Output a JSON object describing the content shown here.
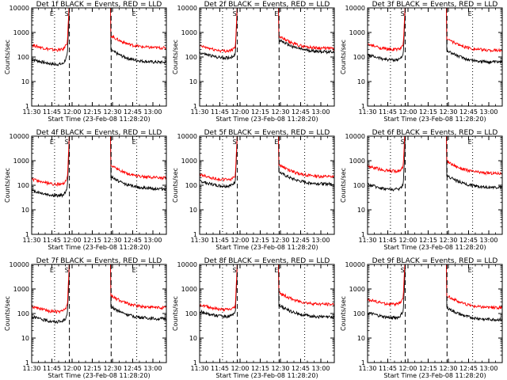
{
  "chart_data": {
    "type": "line",
    "y_scale": "log",
    "ylim": [
      1,
      10000
    ],
    "y_ticks": [
      "1",
      "10",
      "100",
      "1000",
      "10000"
    ],
    "x_ticks": [
      "11:30",
      "11:45",
      "12:00",
      "12:15",
      "12:30",
      "12:45",
      "13:00"
    ],
    "x_range_minutes_after_11_30": [
      0,
      100
    ],
    "xlabel": "Start Time (23-Feb-08 11:28:20)",
    "ylabel": "Counts/sec",
    "colors": {
      "events": "#000000",
      "lld": "#ff0000"
    },
    "markers": [
      {
        "label": "E",
        "time": "11:47",
        "style": "dotted"
      },
      {
        "label": "S",
        "time": "11:58",
        "style": "dashed"
      },
      {
        "label": "E",
        "time": "12:29",
        "style": "dashed"
      },
      {
        "label": "E",
        "time": "12:48",
        "style": "dotted"
      }
    ],
    "panels": [
      {
        "title": "Det 1f BLACK = Events, RED = LLD",
        "markers": [
          "E",
          "S",
          "",
          "E"
        ],
        "series": [
          {
            "name": "Events",
            "color": "#000000",
            "pre": 60,
            "post": 60,
            "peak_pre": 120
          },
          {
            "name": "LLD",
            "color": "#ff0000",
            "pre": 230,
            "post": 230,
            "peak_pre": 420
          }
        ]
      },
      {
        "title": "Det 2f BLACK = Events, RED = LLD",
        "markers": [
          "",
          "S",
          "E",
          ""
        ],
        "series": [
          {
            "name": "Events",
            "color": "#000000",
            "pre": 110,
            "post": 160,
            "peak_pre": 140
          },
          {
            "name": "LLD",
            "color": "#ff0000",
            "pre": 210,
            "post": 220,
            "peak_pre": 250
          }
        ]
      },
      {
        "title": "Det 3f BLACK = Events, RED = LLD",
        "markers": [
          "",
          "S",
          "",
          "E"
        ],
        "series": [
          {
            "name": "Events",
            "color": "#000000",
            "pre": 90,
            "post": 60,
            "peak_pre": 130
          },
          {
            "name": "LLD",
            "color": "#ff0000",
            "pre": 240,
            "post": 180,
            "peak_pre": 300
          }
        ]
      },
      {
        "title": "Det 4f BLACK = Events, RED = LLD",
        "markers": [
          "E",
          "S",
          "",
          "E"
        ],
        "series": [
          {
            "name": "Events",
            "color": "#000000",
            "pre": 45,
            "post": 70,
            "peak_pre": 80
          },
          {
            "name": "LLD",
            "color": "#ff0000",
            "pre": 130,
            "post": 200,
            "peak_pre": 200
          }
        ]
      },
      {
        "title": "Det 5f BLACK = Events, RED = LLD",
        "markers": [
          "",
          "S",
          "E",
          ""
        ],
        "series": [
          {
            "name": "Events",
            "color": "#000000",
            "pre": 110,
            "post": 110,
            "peak_pre": 150
          },
          {
            "name": "LLD",
            "color": "#ff0000",
            "pre": 200,
            "post": 220,
            "peak_pre": 250
          }
        ]
      },
      {
        "title": "Det 6f BLACK = Events, RED = LLD",
        "markers": [
          "",
          "S",
          "",
          "E"
        ],
        "series": [
          {
            "name": "Events",
            "color": "#000000",
            "pre": 80,
            "post": 80,
            "peak_pre": 110
          },
          {
            "name": "LLD",
            "color": "#ff0000",
            "pre": 450,
            "post": 300,
            "peak_pre": 600
          }
        ]
      },
      {
        "title": "Det 7f BLACK = Events, RED = LLD",
        "markers": [
          "E",
          "S",
          "",
          "E"
        ],
        "series": [
          {
            "name": "Events",
            "color": "#000000",
            "pre": 55,
            "post": 60,
            "peak_pre": 90
          },
          {
            "name": "LLD",
            "color": "#ff0000",
            "pre": 140,
            "post": 170,
            "peak_pre": 220
          }
        ]
      },
      {
        "title": "Det 8f BLACK = Events, RED = LLD",
        "markers": [
          "",
          "S",
          "E",
          ""
        ],
        "series": [
          {
            "name": "Events",
            "color": "#000000",
            "pre": 90,
            "post": 70,
            "peak_pre": 110
          },
          {
            "name": "LLD",
            "color": "#ff0000",
            "pre": 170,
            "post": 230,
            "peak_pre": 200
          }
        ]
      },
      {
        "title": "Det 9f BLACK = Events, RED = LLD",
        "markers": [
          "",
          "S",
          "",
          "E"
        ],
        "series": [
          {
            "name": "Events",
            "color": "#000000",
            "pre": 80,
            "post": 55,
            "peak_pre": 130
          },
          {
            "name": "LLD",
            "color": "#ff0000",
            "pre": 280,
            "post": 170,
            "peak_pre": 450
          }
        ]
      }
    ]
  }
}
